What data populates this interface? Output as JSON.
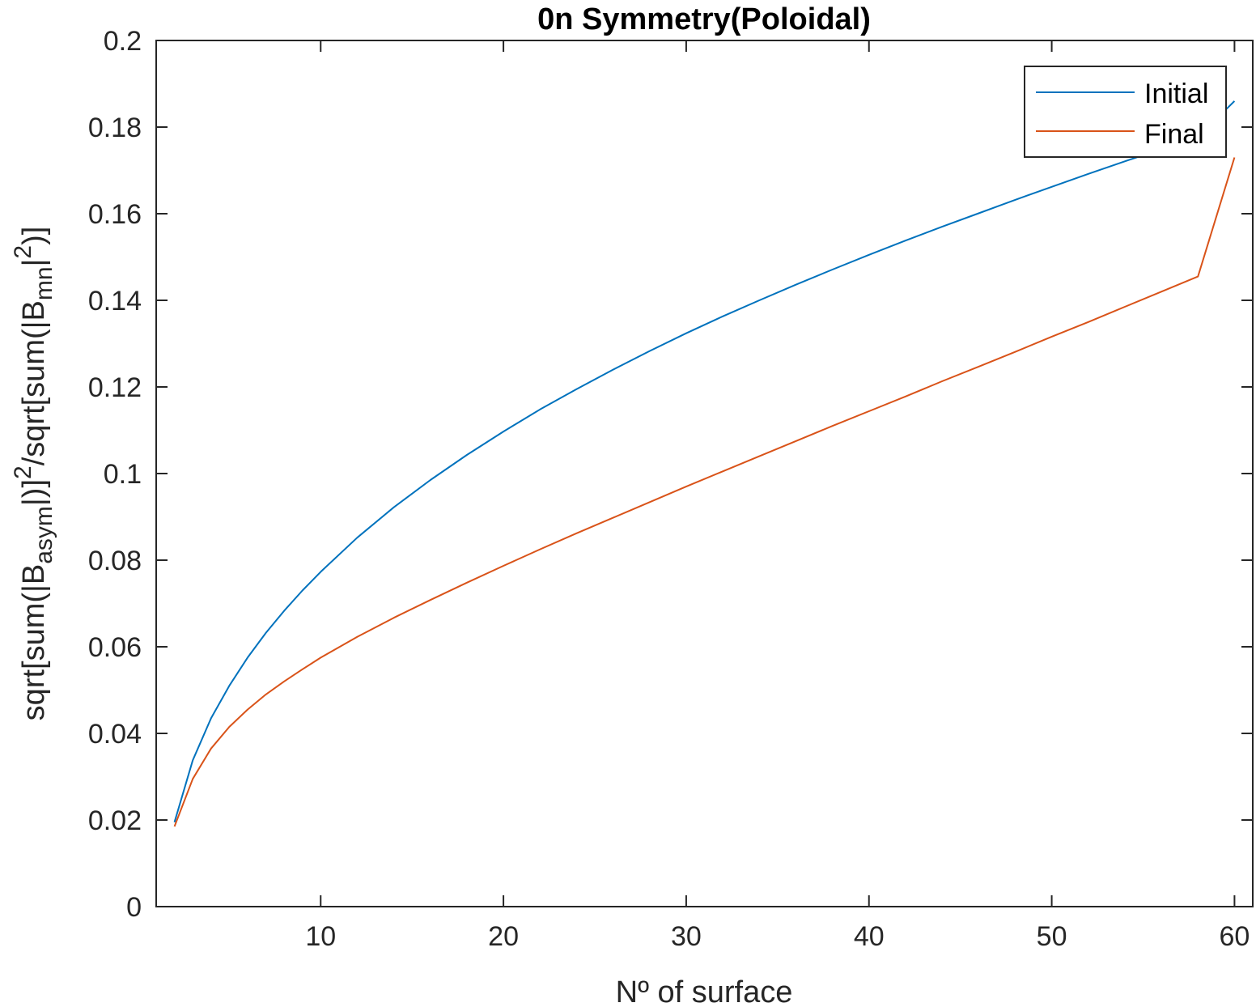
{
  "chart_data": {
    "type": "line",
    "title": "0n Symmetry(Poloidal)",
    "xlabel": "Nº of surface",
    "ylabel_parts": {
      "a": "sqrt[sum(|B",
      "b": "asym",
      "c": "|)]",
      "d": "2",
      "e": "/sqrt[sum(|B",
      "f": "mn",
      "g": "|",
      "h": "2",
      "i": ")]"
    },
    "xlim": [
      1,
      61
    ],
    "ylim": [
      0,
      0.2
    ],
    "xticks": [
      10,
      20,
      30,
      40,
      50,
      60
    ],
    "yticks": [
      0,
      0.02,
      0.04,
      0.06,
      0.08,
      0.1,
      0.12,
      0.14,
      0.16,
      0.18,
      0.2
    ],
    "ytick_labels": [
      "0",
      "0.02",
      "0.04",
      "0.06",
      "0.08",
      "0.1",
      "0.12",
      "0.14",
      "0.16",
      "0.18",
      "0.2"
    ],
    "grid": false,
    "legend_position": "top-right",
    "x": [
      2,
      3,
      4,
      5,
      6,
      7,
      8,
      9,
      10,
      12,
      14,
      16,
      18,
      20,
      22,
      24,
      26,
      28,
      30,
      32,
      34,
      36,
      38,
      40,
      42,
      44,
      46,
      48,
      50,
      52,
      54,
      56,
      58,
      60
    ],
    "series": [
      {
        "name": "Initial",
        "color": "#0072BD",
        "values": [
          0.0195,
          0.0338,
          0.0435,
          0.051,
          0.0575,
          0.0632,
          0.0683,
          0.073,
          0.0773,
          0.0852,
          0.0922,
          0.0985,
          0.1043,
          0.1097,
          0.1148,
          0.1195,
          0.124,
          0.1283,
          0.1324,
          0.1363,
          0.14,
          0.1436,
          0.1471,
          0.1505,
          0.1538,
          0.157,
          0.1601,
          0.1632,
          0.1662,
          0.1692,
          0.1721,
          0.1749,
          0.1777,
          0.186
        ]
      },
      {
        "name": "Final",
        "color": "#D95319",
        "values": [
          0.0185,
          0.0295,
          0.0365,
          0.0415,
          0.0455,
          0.049,
          0.052,
          0.0548,
          0.0575,
          0.0623,
          0.0667,
          0.0708,
          0.0748,
          0.0787,
          0.0825,
          0.0862,
          0.0898,
          0.0934,
          0.097,
          0.1005,
          0.104,
          0.1075,
          0.111,
          0.1144,
          0.1178,
          0.1213,
          0.1247,
          0.1281,
          0.1316,
          0.135,
          0.1385,
          0.142,
          0.1455,
          0.173
        ]
      }
    ]
  }
}
